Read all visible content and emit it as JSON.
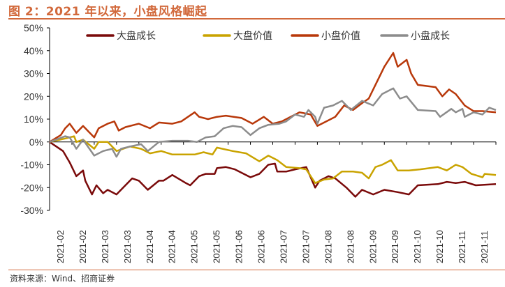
{
  "title": "图 2：2021 年以来，小盘风格崛起",
  "source": "资料来源：Wind、招商证券",
  "chart_data": {
    "type": "line",
    "title": "图 2：2021 年以来，小盘风格崛起",
    "xlabel": "",
    "ylabel": "",
    "x_unit": "trading-day index since 2021-02 start (approx.)",
    "xlim": [
      0,
      200
    ],
    "ylim": [
      -30,
      50
    ],
    "yticks": [
      "50%",
      "40%",
      "30%",
      "20%",
      "10%",
      "0%",
      "-10%",
      "-20%",
      "-30%"
    ],
    "ytick_values": [
      50,
      40,
      30,
      20,
      10,
      0,
      -10,
      -20,
      -30
    ],
    "xticks": [
      "2021-02",
      "2021-02",
      "2021-03",
      "2021-03",
      "2021-04",
      "2021-04",
      "2021-05",
      "2021-05",
      "2021-06",
      "2021-06",
      "2021-07",
      "2021-07",
      "2021-08",
      "2021-08",
      "2021-09",
      "2021-09",
      "2021-10",
      "2021-10",
      "2021-11",
      "2021-11"
    ],
    "legend_position": "top",
    "grid": false,
    "series": [
      {
        "name": "大盘成长",
        "color": "#7a0a0a",
        "points": [
          [
            0,
            0
          ],
          [
            6,
            -4
          ],
          [
            9,
            -9
          ],
          [
            12,
            -15
          ],
          [
            15,
            -12.5
          ],
          [
            16,
            -17
          ],
          [
            19,
            -23
          ],
          [
            21,
            -19
          ],
          [
            24,
            -22.5
          ],
          [
            26,
            -21
          ],
          [
            30,
            -23
          ],
          [
            33,
            -20
          ],
          [
            37,
            -16
          ],
          [
            40,
            -17
          ],
          [
            44,
            -21
          ],
          [
            49,
            -17
          ],
          [
            51,
            -17
          ],
          [
            55,
            -14.5
          ],
          [
            61,
            -18
          ],
          [
            63,
            -19
          ],
          [
            67,
            -15
          ],
          [
            70,
            -14
          ],
          [
            74,
            -14
          ],
          [
            75,
            -11.5
          ],
          [
            79,
            -11
          ],
          [
            83,
            -12
          ],
          [
            90,
            -15.5
          ],
          [
            94,
            -14
          ],
          [
            98,
            -10
          ],
          [
            101,
            -9.5
          ],
          [
            102,
            -13
          ],
          [
            106,
            -13
          ],
          [
            110,
            -12
          ],
          [
            115,
            -11
          ],
          [
            119,
            -20
          ],
          [
            121,
            -17
          ],
          [
            125,
            -15
          ],
          [
            128,
            -16
          ],
          [
            133,
            -20
          ],
          [
            137,
            -24
          ],
          [
            140,
            -21
          ],
          [
            145,
            -23
          ],
          [
            150,
            -21
          ],
          [
            156,
            -22
          ],
          [
            161,
            -23
          ],
          [
            165,
            -19
          ],
          [
            174,
            -18.5
          ],
          [
            178,
            -17.5
          ],
          [
            182,
            -18
          ],
          [
            186,
            -17.5
          ],
          [
            191,
            -19
          ],
          [
            200,
            -18.5
          ]
        ]
      },
      {
        "name": "大盘价值",
        "color": "#c9a300",
        "points": [
          [
            0,
            0
          ],
          [
            7,
            1.5
          ],
          [
            11,
            2.5
          ],
          [
            12,
            0
          ],
          [
            15,
            1
          ],
          [
            20,
            -3
          ],
          [
            22,
            0
          ],
          [
            26,
            0
          ],
          [
            30,
            -4
          ],
          [
            36,
            -2
          ],
          [
            41,
            -3
          ],
          [
            45,
            -5
          ],
          [
            50,
            -4
          ],
          [
            55,
            -5.5
          ],
          [
            65,
            -5.5
          ],
          [
            69,
            -4.5
          ],
          [
            73,
            -5.5
          ],
          [
            75,
            -2.5
          ],
          [
            82,
            -4
          ],
          [
            88,
            -5
          ],
          [
            94,
            -8.5
          ],
          [
            98,
            -6
          ],
          [
            102,
            -8
          ],
          [
            106,
            -11
          ],
          [
            112,
            -11.5
          ],
          [
            115,
            -12
          ],
          [
            119,
            -18
          ],
          [
            123,
            -16.5
          ],
          [
            127,
            -16
          ],
          [
            131,
            -13
          ],
          [
            136,
            -13
          ],
          [
            140,
            -13.5
          ],
          [
            143,
            -16
          ],
          [
            146,
            -11
          ],
          [
            149,
            -10
          ],
          [
            153,
            -8
          ],
          [
            156,
            -12.5
          ],
          [
            161,
            -12.5
          ],
          [
            166,
            -12
          ],
          [
            174,
            -11
          ],
          [
            178,
            -12.5
          ],
          [
            182,
            -10
          ],
          [
            185,
            -11
          ],
          [
            189,
            -14
          ],
          [
            194,
            -15.5
          ],
          [
            195,
            -14
          ],
          [
            200,
            -14.5
          ]
        ]
      },
      {
        "name": "小盘价值",
        "color": "#b8380a",
        "points": [
          [
            0,
            0
          ],
          [
            5,
            3
          ],
          [
            7,
            6
          ],
          [
            9,
            8
          ],
          [
            12,
            4
          ],
          [
            15,
            7
          ],
          [
            17,
            5
          ],
          [
            20,
            2
          ],
          [
            22,
            6
          ],
          [
            26,
            8
          ],
          [
            29,
            9
          ],
          [
            31,
            5
          ],
          [
            34,
            6.5
          ],
          [
            40,
            8
          ],
          [
            45,
            6
          ],
          [
            49,
            8.5
          ],
          [
            55,
            8
          ],
          [
            59,
            9
          ],
          [
            65,
            13
          ],
          [
            67,
            11
          ],
          [
            71,
            10
          ],
          [
            75,
            11
          ],
          [
            79,
            11.5
          ],
          [
            86,
            10.5
          ],
          [
            91,
            8
          ],
          [
            96,
            11
          ],
          [
            100,
            8
          ],
          [
            104,
            9
          ],
          [
            108,
            11
          ],
          [
            112,
            13
          ],
          [
            117,
            12
          ],
          [
            120,
            7
          ],
          [
            124,
            9
          ],
          [
            128,
            11
          ],
          [
            132,
            16
          ],
          [
            136,
            14
          ],
          [
            140,
            17
          ],
          [
            143,
            19
          ],
          [
            147,
            27
          ],
          [
            150,
            33
          ],
          [
            154,
            39
          ],
          [
            156,
            33
          ],
          [
            160,
            36
          ],
          [
            162,
            30
          ],
          [
            165,
            25
          ],
          [
            173,
            24
          ],
          [
            176,
            20
          ],
          [
            179,
            23
          ],
          [
            182,
            21
          ],
          [
            186,
            16
          ],
          [
            190,
            13.5
          ],
          [
            194,
            13.5
          ],
          [
            200,
            13
          ]
        ]
      },
      {
        "name": "小盘成长",
        "color": "#8c8c8c",
        "points": [
          [
            0,
            0
          ],
          [
            7,
            2.5
          ],
          [
            9,
            2
          ],
          [
            12,
            -3
          ],
          [
            15,
            1
          ],
          [
            20,
            -6
          ],
          [
            24,
            -4
          ],
          [
            28,
            -3
          ],
          [
            30,
            -6.5
          ],
          [
            32,
            -3
          ],
          [
            36,
            -2
          ],
          [
            41,
            -1
          ],
          [
            44,
            -4
          ],
          [
            49,
            0
          ],
          [
            55,
            0.5
          ],
          [
            62,
            0.5
          ],
          [
            66,
            0
          ],
          [
            70,
            2
          ],
          [
            74,
            2.5
          ],
          [
            78,
            6
          ],
          [
            82,
            7
          ],
          [
            86,
            6.5
          ],
          [
            90,
            3
          ],
          [
            94,
            6
          ],
          [
            98,
            7.5
          ],
          [
            103,
            8
          ],
          [
            106,
            9
          ],
          [
            110,
            12
          ],
          [
            114,
            11
          ],
          [
            116,
            14
          ],
          [
            119,
            11
          ],
          [
            120,
            8
          ],
          [
            123,
            15
          ],
          [
            127,
            16
          ],
          [
            131,
            18
          ],
          [
            135,
            14
          ],
          [
            140,
            18
          ],
          [
            145,
            16
          ],
          [
            149,
            21
          ],
          [
            154,
            23.5
          ],
          [
            157,
            19
          ],
          [
            160,
            20
          ],
          [
            165,
            14
          ],
          [
            173,
            13.5
          ],
          [
            175,
            11
          ],
          [
            180,
            14.5
          ],
          [
            182,
            13
          ],
          [
            185,
            14.5
          ],
          [
            186,
            11
          ],
          [
            190,
            13
          ],
          [
            194,
            12
          ],
          [
            197,
            15
          ],
          [
            200,
            14
          ]
        ]
      }
    ]
  }
}
